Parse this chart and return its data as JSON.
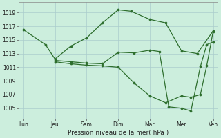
{
  "background_color": "#cceedd",
  "grid_color": "#aacccc",
  "line_color": "#2d6e2d",
  "marker_color": "#2d6e2d",
  "xlabel": "Pression niveau de la mer( hPa )",
  "ylim": [
    1003.5,
    1020.5
  ],
  "yticks": [
    1005,
    1007,
    1009,
    1011,
    1013,
    1015,
    1017,
    1019
  ],
  "xtick_labels": [
    "Lun",
    "Jeu",
    "Sam",
    "Dim",
    "Mar",
    "Mer",
    "Ven"
  ],
  "xtick_positions": [
    0,
    1,
    2,
    3,
    4,
    5,
    6
  ],
  "series": [
    {
      "x": [
        0,
        0.7,
        1.0,
        1.5,
        2.0,
        2.5,
        3.0,
        3.4,
        4.0,
        4.5,
        5.0,
        5.5,
        6.0
      ],
      "y": [
        1016.5,
        1014.3,
        1012.2,
        1014.1,
        1015.3,
        1017.5,
        1019.4,
        1019.2,
        1018.0,
        1017.5,
        1013.4,
        1013.0,
        1016.3
      ]
    },
    {
      "x": [
        1.0,
        1.5,
        2.0,
        2.5,
        3.0,
        3.5,
        4.0,
        4.3,
        4.6,
        5.0,
        5.3,
        5.6,
        5.8,
        6.0
      ],
      "y": [
        1012.0,
        1011.8,
        1011.6,
        1011.5,
        1013.2,
        1013.1,
        1013.5,
        1013.3,
        1005.2,
        1005.0,
        1004.6,
        1011.1,
        1014.3,
        1014.7
      ]
    },
    {
      "x": [
        1.0,
        1.5,
        2.0,
        2.5,
        3.0,
        3.5,
        4.0,
        4.5,
        5.0,
        5.3,
        5.6,
        5.8,
        6.0
      ],
      "y": [
        1011.8,
        1011.5,
        1011.3,
        1011.2,
        1011.0,
        1008.7,
        1006.8,
        1005.8,
        1006.8,
        1006.6,
        1007.0,
        1011.2,
        1016.2
      ]
    }
  ]
}
